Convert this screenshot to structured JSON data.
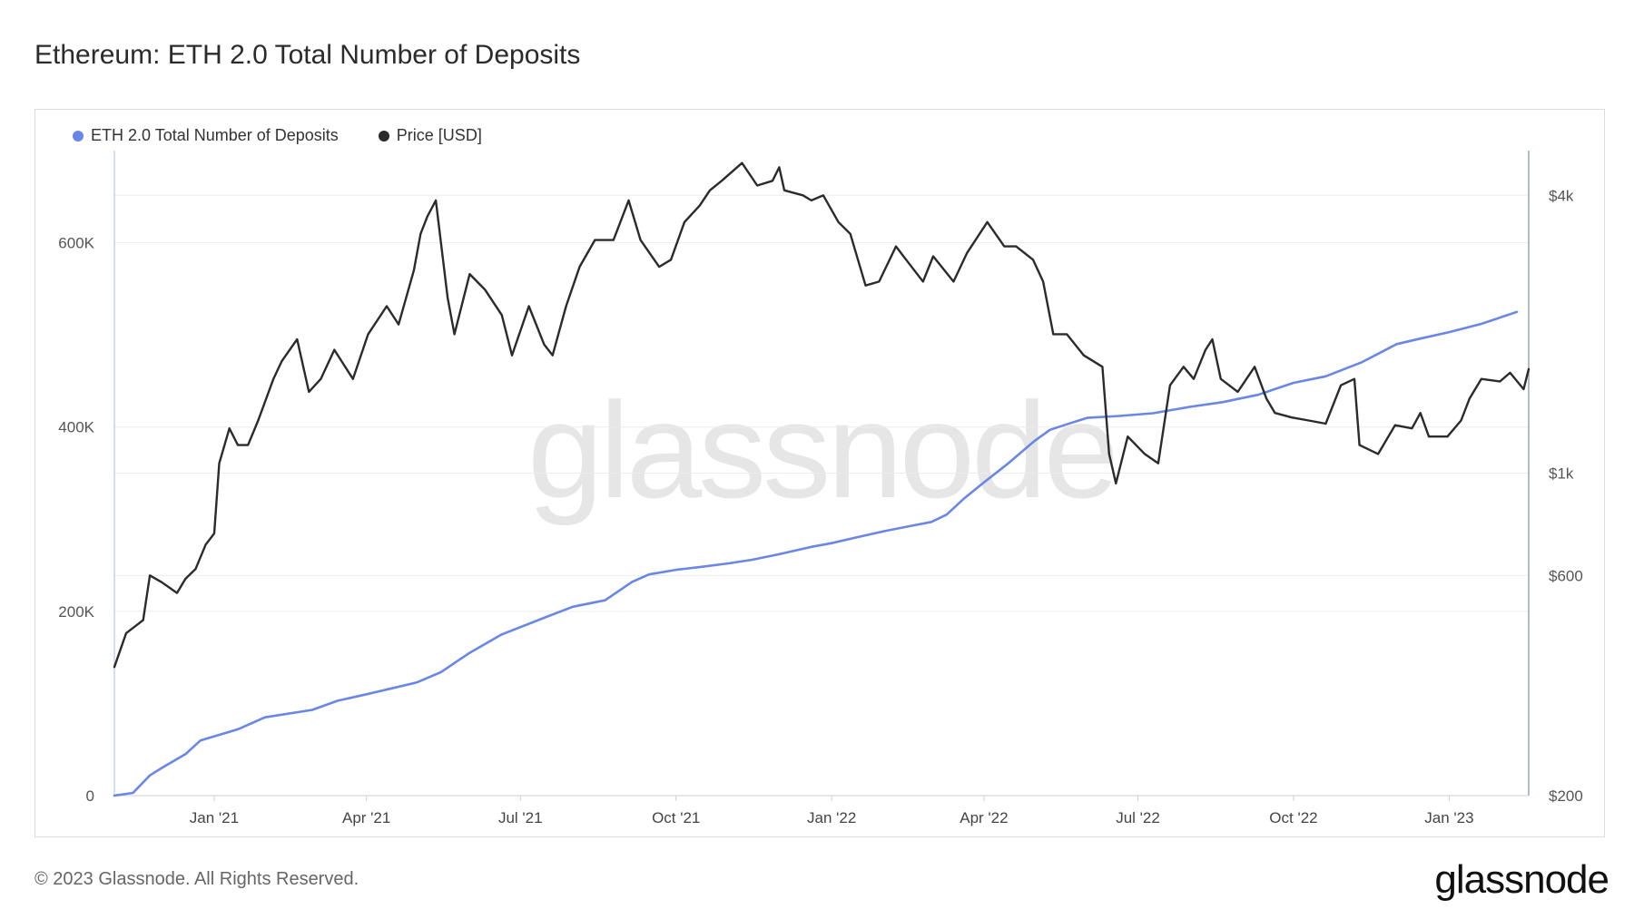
{
  "title": "Ethereum: ETH 2.0 Total Number of Deposits",
  "footer": "© 2023 Glassnode. All Rights Reserved.",
  "brand": "glassnode",
  "watermark": "glassnode",
  "colors": {
    "deposits": "#6a86e6",
    "price": "#2b2b2b",
    "grid": "#ececec"
  },
  "legend": [
    {
      "label": "ETH 2.0 Total Number of Deposits",
      "color": "#6a86e6"
    },
    {
      "label": "Price [USD]",
      "color": "#2b2b2b"
    }
  ],
  "chart_data": {
    "type": "line",
    "title": "Ethereum: ETH 2.0 Total Number of Deposits",
    "x_ticks": [
      "Jan '21",
      "Apr '21",
      "Jul '21",
      "Oct '21",
      "Jan '22",
      "Apr '22",
      "Jul '22",
      "Oct '22",
      "Jan '23"
    ],
    "y_left": {
      "ticks": [
        "0",
        "200K",
        "400K",
        "600K"
      ],
      "tick_values": [
        0,
        200000,
        400000,
        600000
      ],
      "range": [
        0,
        700000
      ]
    },
    "y_right": {
      "scale": "log",
      "ticks": [
        "$200",
        "$600",
        "$1k",
        "$4k"
      ],
      "tick_values": [
        200,
        600,
        1000,
        4000
      ],
      "range": [
        200,
        5000
      ]
    },
    "grid": true,
    "legend_position": "top-left",
    "series": [
      {
        "name": "ETH 2.0 Total Number of Deposits",
        "axis": "left",
        "color": "#6a86e6",
        "points": [
          [
            "2020-11-03",
            0
          ],
          [
            "2020-11-14",
            3000
          ],
          [
            "2020-11-24",
            22000
          ],
          [
            "2020-12-01",
            30000
          ],
          [
            "2020-12-15",
            45000
          ],
          [
            "2020-12-24",
            60000
          ],
          [
            "2021-01-15",
            72000
          ],
          [
            "2021-01-31",
            85000
          ],
          [
            "2021-02-28",
            93000
          ],
          [
            "2021-03-15",
            103000
          ],
          [
            "2021-04-01",
            110000
          ],
          [
            "2021-04-15",
            116000
          ],
          [
            "2021-05-01",
            123000
          ],
          [
            "2021-05-15",
            134000
          ],
          [
            "2021-06-01",
            155000
          ],
          [
            "2021-06-20",
            175000
          ],
          [
            "2021-07-15",
            193000
          ],
          [
            "2021-08-01",
            205000
          ],
          [
            "2021-08-20",
            212000
          ],
          [
            "2021-09-05",
            232000
          ],
          [
            "2021-09-15",
            240000
          ],
          [
            "2021-10-01",
            245000
          ],
          [
            "2021-10-15",
            248000
          ],
          [
            "2021-11-01",
            252000
          ],
          [
            "2021-11-15",
            256000
          ],
          [
            "2021-12-01",
            262000
          ],
          [
            "2021-12-20",
            270000
          ],
          [
            "2022-01-01",
            274000
          ],
          [
            "2022-01-15",
            280000
          ],
          [
            "2022-02-01",
            287000
          ],
          [
            "2022-02-15",
            292000
          ],
          [
            "2022-03-01",
            297000
          ],
          [
            "2022-03-10",
            305000
          ],
          [
            "2022-03-20",
            322000
          ],
          [
            "2022-04-01",
            340000
          ],
          [
            "2022-04-15",
            360000
          ],
          [
            "2022-05-01",
            385000
          ],
          [
            "2022-05-10",
            397000
          ],
          [
            "2022-05-20",
            403000
          ],
          [
            "2022-06-01",
            410000
          ],
          [
            "2022-06-20",
            412000
          ],
          [
            "2022-07-10",
            415000
          ],
          [
            "2022-08-01",
            422000
          ],
          [
            "2022-08-20",
            427000
          ],
          [
            "2022-09-10",
            435000
          ],
          [
            "2022-10-01",
            448000
          ],
          [
            "2022-10-20",
            455000
          ],
          [
            "2022-11-10",
            470000
          ],
          [
            "2022-12-01",
            490000
          ],
          [
            "2022-12-15",
            496000
          ],
          [
            "2023-01-01",
            503000
          ],
          [
            "2023-01-20",
            512000
          ],
          [
            "2023-02-10",
            525000
          ]
        ]
      },
      {
        "name": "Price [USD]",
        "axis": "right",
        "color": "#2b2b2b",
        "points": [
          [
            "2020-11-03",
            380
          ],
          [
            "2020-11-10",
            450
          ],
          [
            "2020-11-20",
            480
          ],
          [
            "2020-11-24",
            600
          ],
          [
            "2020-12-01",
            580
          ],
          [
            "2020-12-10",
            550
          ],
          [
            "2020-12-15",
            590
          ],
          [
            "2020-12-21",
            620
          ],
          [
            "2020-12-27",
            700
          ],
          [
            "2021-01-01",
            740
          ],
          [
            "2021-01-04",
            1050
          ],
          [
            "2021-01-10",
            1250
          ],
          [
            "2021-01-15",
            1150
          ],
          [
            "2021-01-21",
            1150
          ],
          [
            "2021-01-27",
            1300
          ],
          [
            "2021-02-05",
            1600
          ],
          [
            "2021-02-10",
            1750
          ],
          [
            "2021-02-19",
            1950
          ],
          [
            "2021-02-26",
            1500
          ],
          [
            "2021-03-05",
            1600
          ],
          [
            "2021-03-13",
            1850
          ],
          [
            "2021-03-24",
            1600
          ],
          [
            "2021-04-02",
            2000
          ],
          [
            "2021-04-13",
            2300
          ],
          [
            "2021-04-20",
            2100
          ],
          [
            "2021-04-29",
            2750
          ],
          [
            "2021-05-03",
            3300
          ],
          [
            "2021-05-07",
            3600
          ],
          [
            "2021-05-12",
            3900
          ],
          [
            "2021-05-19",
            2400
          ],
          [
            "2021-05-23",
            2000
          ],
          [
            "2021-06-01",
            2700
          ],
          [
            "2021-06-10",
            2500
          ],
          [
            "2021-06-20",
            2200
          ],
          [
            "2021-06-26",
            1800
          ],
          [
            "2021-07-06",
            2300
          ],
          [
            "2021-07-15",
            1900
          ],
          [
            "2021-07-20",
            1800
          ],
          [
            "2021-07-28",
            2300
          ],
          [
            "2021-08-05",
            2800
          ],
          [
            "2021-08-14",
            3200
          ],
          [
            "2021-08-25",
            3200
          ],
          [
            "2021-09-03",
            3900
          ],
          [
            "2021-09-10",
            3200
          ],
          [
            "2021-09-21",
            2800
          ],
          [
            "2021-09-28",
            2900
          ],
          [
            "2021-10-06",
            3500
          ],
          [
            "2021-10-15",
            3800
          ],
          [
            "2021-10-21",
            4100
          ],
          [
            "2021-10-28",
            4300
          ],
          [
            "2021-11-09",
            4700
          ],
          [
            "2021-11-18",
            4200
          ],
          [
            "2021-11-27",
            4300
          ],
          [
            "2021-12-01",
            4600
          ],
          [
            "2021-12-04",
            4100
          ],
          [
            "2021-12-15",
            4000
          ],
          [
            "2021-12-20",
            3900
          ],
          [
            "2021-12-27",
            4000
          ],
          [
            "2022-01-05",
            3500
          ],
          [
            "2022-01-12",
            3300
          ],
          [
            "2022-01-21",
            2550
          ],
          [
            "2022-01-29",
            2600
          ],
          [
            "2022-02-08",
            3100
          ],
          [
            "2022-02-14",
            2900
          ],
          [
            "2022-02-24",
            2600
          ],
          [
            "2022-03-02",
            2950
          ],
          [
            "2022-03-14",
            2600
          ],
          [
            "2022-03-22",
            3000
          ],
          [
            "2022-04-03",
            3500
          ],
          [
            "2022-04-13",
            3100
          ],
          [
            "2022-04-20",
            3100
          ],
          [
            "2022-04-30",
            2900
          ],
          [
            "2022-05-06",
            2600
          ],
          [
            "2022-05-12",
            2000
          ],
          [
            "2022-05-20",
            2000
          ],
          [
            "2022-05-30",
            1800
          ],
          [
            "2022-06-10",
            1700
          ],
          [
            "2022-06-14",
            1100
          ],
          [
            "2022-06-18",
            950
          ],
          [
            "2022-06-25",
            1200
          ],
          [
            "2022-07-05",
            1100
          ],
          [
            "2022-07-13",
            1050
          ],
          [
            "2022-07-20",
            1550
          ],
          [
            "2022-07-28",
            1700
          ],
          [
            "2022-08-03",
            1600
          ],
          [
            "2022-08-10",
            1850
          ],
          [
            "2022-08-14",
            1950
          ],
          [
            "2022-08-19",
            1600
          ],
          [
            "2022-08-29",
            1500
          ],
          [
            "2022-09-08",
            1700
          ],
          [
            "2022-09-15",
            1450
          ],
          [
            "2022-09-20",
            1350
          ],
          [
            "2022-09-30",
            1320
          ],
          [
            "2022-10-10",
            1300
          ],
          [
            "2022-10-20",
            1280
          ],
          [
            "2022-10-29",
            1550
          ],
          [
            "2022-11-06",
            1600
          ],
          [
            "2022-11-09",
            1150
          ],
          [
            "2022-11-20",
            1100
          ],
          [
            "2022-11-30",
            1270
          ],
          [
            "2022-12-10",
            1250
          ],
          [
            "2022-12-15",
            1350
          ],
          [
            "2022-12-20",
            1200
          ],
          [
            "2022-12-31",
            1200
          ],
          [
            "2023-01-08",
            1300
          ],
          [
            "2023-01-13",
            1450
          ],
          [
            "2023-01-20",
            1600
          ],
          [
            "2023-01-31",
            1580
          ],
          [
            "2023-02-06",
            1650
          ],
          [
            "2023-02-14",
            1520
          ],
          [
            "2023-02-17",
            1680
          ]
        ]
      }
    ]
  }
}
